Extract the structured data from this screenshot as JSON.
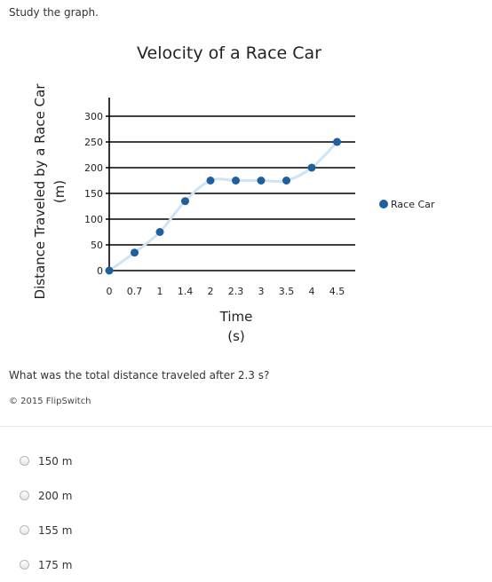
{
  "instruction": "Study the graph.",
  "question": "What was the total distance traveled after 2.3 s?",
  "copyright": "© 2015 FlipSwitch",
  "choices": [
    "150 m",
    "200 m",
    "155 m",
    "175 m"
  ],
  "colors": {
    "point": "#1f5f9e",
    "curve": "#cfe3f7",
    "grid": "#000000"
  },
  "chart_data": {
    "type": "scatter",
    "title": "Velocity of a Race Car",
    "xlabel": "Time (s)",
    "xlabel_lines": [
      "Time",
      "(s)"
    ],
    "ylabel": "Distance Traveled by a Race Car (m)",
    "ylabel_lines": [
      "Distance Traveled by a Race Car",
      "(m)"
    ],
    "x_ticks": [
      "0",
      "0.7",
      "1",
      "1.4",
      "2",
      "2.3",
      "3",
      "3.5",
      "4",
      "4.5"
    ],
    "y_ticks": [
      0,
      50,
      100,
      150,
      200,
      250,
      300
    ],
    "ylim": [
      0,
      300
    ],
    "grid": true,
    "legend_position": "right",
    "series": [
      {
        "name": "Race Car",
        "x": [
          "0",
          "0.7",
          "1",
          "1.4",
          "2",
          "2.3",
          "3",
          "3.5",
          "4",
          "4.5"
        ],
        "y": [
          0,
          35,
          75,
          135,
          175,
          175,
          175,
          175,
          200,
          250
        ]
      }
    ]
  }
}
